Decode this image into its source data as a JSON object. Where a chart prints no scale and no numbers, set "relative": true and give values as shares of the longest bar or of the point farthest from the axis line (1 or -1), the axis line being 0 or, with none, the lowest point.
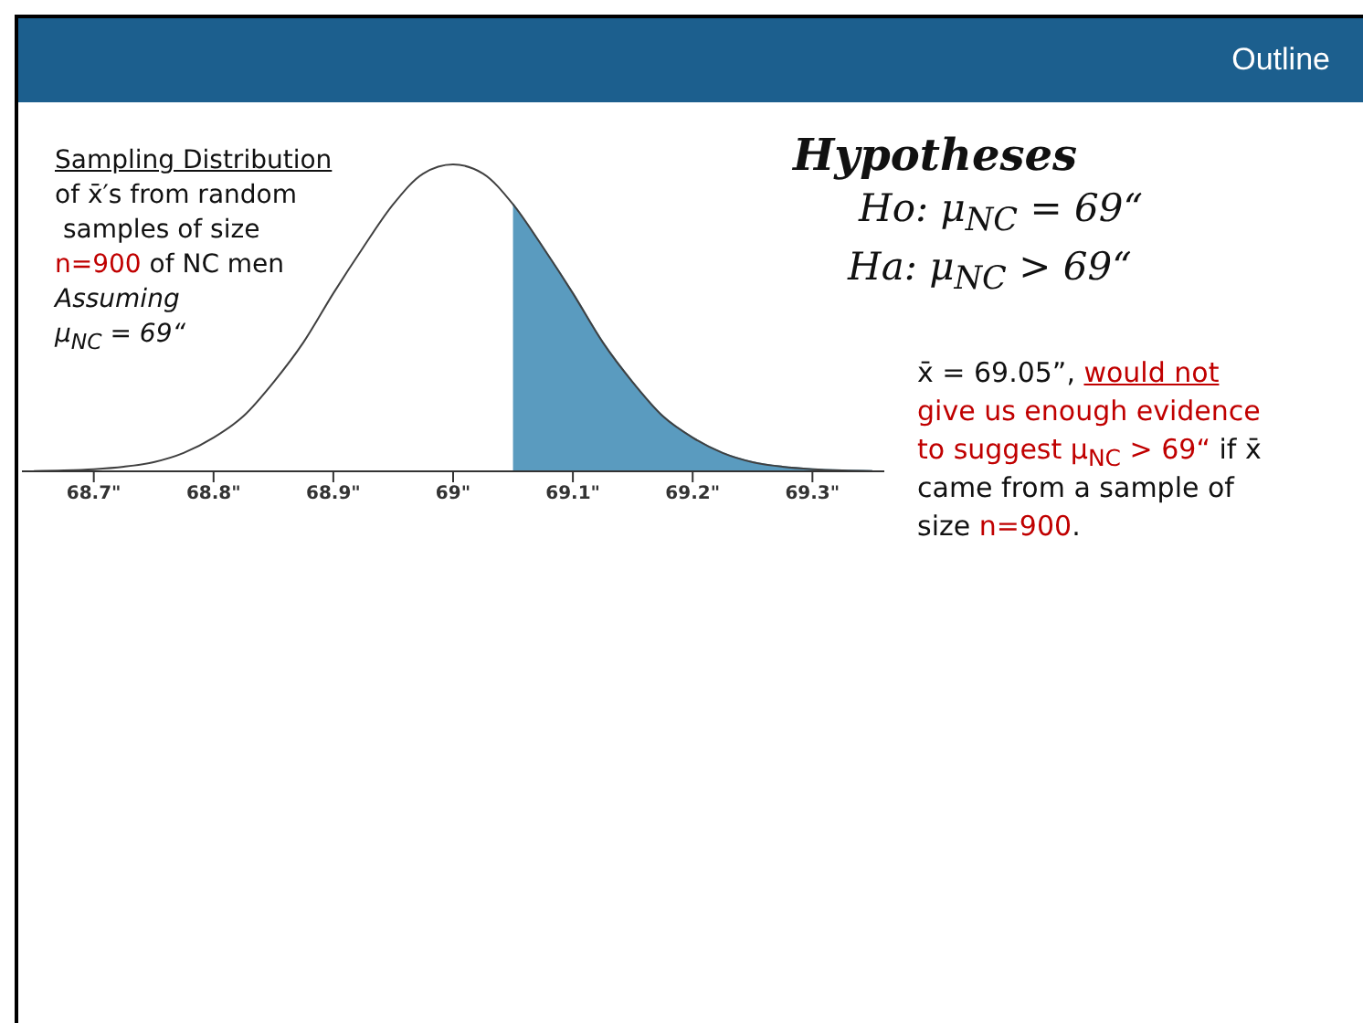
{
  "chart_data": {
    "type": "line",
    "relative": true,
    "title": "Outline",
    "annotations": [
      "Sampling Distribution",
      "of x̄′s from random",
      " samples of size",
      "n=900",
      " of NC men",
      "Assuming",
      "μ$_{NC}$ = 69“",
      "Hypotheses",
      "Ho: μ$_{NC}$ = 69“",
      "Ha: μ$_{NC}$ > 69“",
      "x̄ = 69.05”, ",
      "would not",
      "give us enough evidence",
      "to suggest μ$_{NC}$ > 69“",
      " if x̄",
      "came from a sample of",
      "size ",
      "n=900",
      "."
    ],
    "xlim": [
      68.64,
      69.36
    ],
    "xticks": [
      {
        "value": 68.7,
        "label": "68.7\""
      },
      {
        "value": 68.8,
        "label": "68.8\""
      },
      {
        "value": 68.9,
        "label": "68.9\""
      },
      {
        "value": 69,
        "label": "69\""
      },
      {
        "value": 69.1,
        "label": "69.1\""
      },
      {
        "value": 69.2,
        "label": "69.2\""
      },
      {
        "value": 69.3,
        "label": "69.3\""
      }
    ],
    "series": [
      {
        "type": "area",
        "color": "#5a9bbf",
        "x": [
          69.05,
          69.075,
          69.1,
          69.125,
          69.15,
          69.175,
          69.2,
          69.225,
          69.25,
          69.275,
          69.3,
          69.325,
          69.35
        ],
        "values": [
          0.87,
          0.73,
          0.58,
          0.42,
          0.29,
          0.18,
          0.11,
          0.06,
          0.03,
          0.015,
          0.007,
          0.003,
          0.001
        ]
      },
      {
        "color": "#404040",
        "x": [
          68.65,
          68.675,
          68.7,
          68.725,
          68.75,
          68.775,
          68.8,
          68.825,
          68.85,
          68.875,
          68.9,
          68.925,
          68.95,
          68.975,
          69,
          69.025,
          69.05,
          69.075,
          69.1,
          69.125,
          69.15,
          69.175,
          69.2,
          69.225,
          69.25,
          69.275,
          69.3,
          69.325,
          69.35
        ],
        "values": [
          0.001,
          0.003,
          0.007,
          0.015,
          0.03,
          0.06,
          0.11,
          0.18,
          0.29,
          0.42,
          0.58,
          0.73,
          0.87,
          0.97,
          1,
          0.97,
          0.87,
          0.73,
          0.58,
          0.42,
          0.29,
          0.18,
          0.11,
          0.06,
          0.03,
          0.015,
          0.007,
          0.003,
          0.001
        ]
      }
    ]
  }
}
